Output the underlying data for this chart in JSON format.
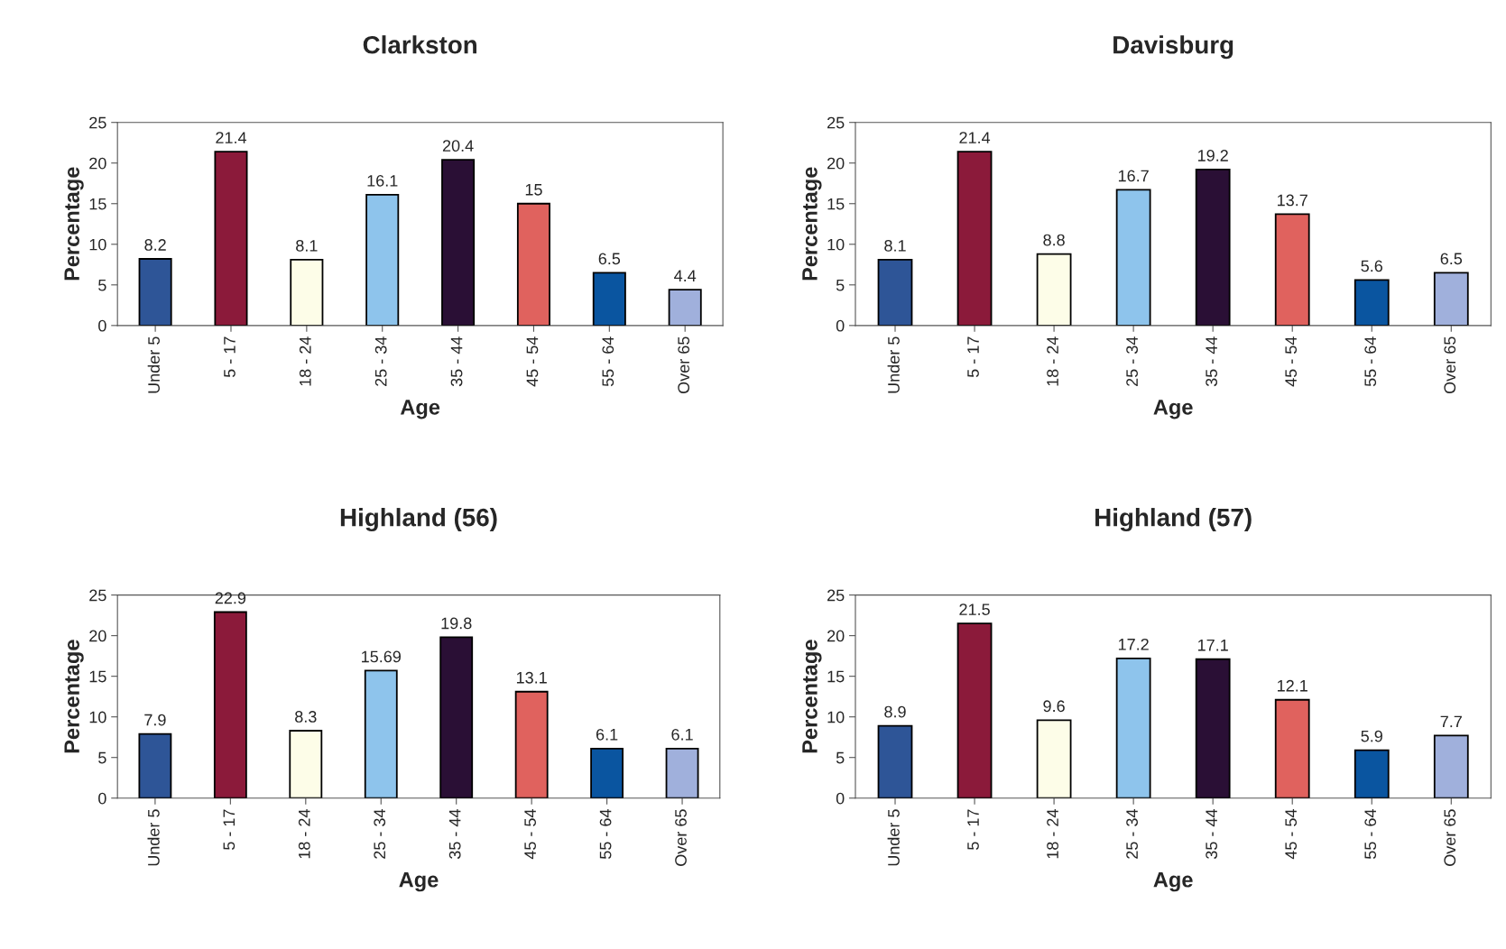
{
  "chart_data": [
    {
      "type": "bar",
      "title": "Clarkston",
      "xlabel": "Age",
      "ylabel": "Percentage",
      "categories": [
        "Under 5",
        "5 - 17",
        "18 - 24",
        "25 - 34",
        "35 - 44",
        "45 - 54",
        "55 - 64",
        "Over 65"
      ],
      "values": [
        8.2,
        21.4,
        8.1,
        16.1,
        20.4,
        15,
        6.5,
        4.4
      ],
      "colors": [
        "#2e5597",
        "#8b1a3a",
        "#fdfde8",
        "#8ec4ec",
        "#2a0f35",
        "#e0625e",
        "#0a55a0",
        "#a0b0dc"
      ],
      "ylim": [
        0,
        25
      ],
      "yticks": [
        0,
        5,
        10,
        15,
        20,
        25
      ],
      "data_labels": true,
      "grid": false,
      "legend": false
    },
    {
      "type": "bar",
      "title": "Davisburg",
      "xlabel": "Age",
      "ylabel": "Percentage",
      "categories": [
        "Under 5",
        "5 - 17",
        "18 - 24",
        "25 - 34",
        "35 - 44",
        "45 - 54",
        "55 - 64",
        "Over 65"
      ],
      "values": [
        8.1,
        21.4,
        8.8,
        16.7,
        19.2,
        13.7,
        5.6,
        6.5
      ],
      "colors": [
        "#2e5597",
        "#8b1a3a",
        "#fdfde8",
        "#8ec4ec",
        "#2a0f35",
        "#e0625e",
        "#0a55a0",
        "#a0b0dc"
      ],
      "ylim": [
        0,
        25
      ],
      "yticks": [
        0,
        5,
        10,
        15,
        20,
        25
      ],
      "data_labels": true,
      "grid": false,
      "legend": false
    },
    {
      "type": "bar",
      "title": "Highland (56)",
      "xlabel": "Age",
      "ylabel": "Percentage",
      "categories": [
        "Under 5",
        "5 - 17",
        "18 - 24",
        "25 - 34",
        "35 - 44",
        "45 - 54",
        "55 - 64",
        "Over 65"
      ],
      "values": [
        7.9,
        22.9,
        8.3,
        15.69,
        19.8,
        13.1,
        6.1,
        6.1
      ],
      "colors": [
        "#2e5597",
        "#8b1a3a",
        "#fdfde8",
        "#8ec4ec",
        "#2a0f35",
        "#e0625e",
        "#0a55a0",
        "#a0b0dc"
      ],
      "ylim": [
        0,
        25
      ],
      "yticks": [
        0,
        5,
        10,
        15,
        20,
        25
      ],
      "data_labels": true,
      "grid": false,
      "legend": false
    },
    {
      "type": "bar",
      "title": "Highland (57)",
      "xlabel": "Age",
      "ylabel": "Percentage",
      "categories": [
        "Under 5",
        "5 - 17",
        "18 - 24",
        "25 - 34",
        "35 - 44",
        "45 - 54",
        "55 - 64",
        "Over 65"
      ],
      "values": [
        8.9,
        21.5,
        9.6,
        17.2,
        17.1,
        12.1,
        5.9,
        7.7
      ],
      "colors": [
        "#2e5597",
        "#8b1a3a",
        "#fdfde8",
        "#8ec4ec",
        "#2a0f35",
        "#e0625e",
        "#0a55a0",
        "#a0b0dc"
      ],
      "ylim": [
        0,
        25
      ],
      "yticks": [
        0,
        5,
        10,
        15,
        20,
        25
      ],
      "data_labels": true,
      "grid": false,
      "legend": false
    }
  ]
}
